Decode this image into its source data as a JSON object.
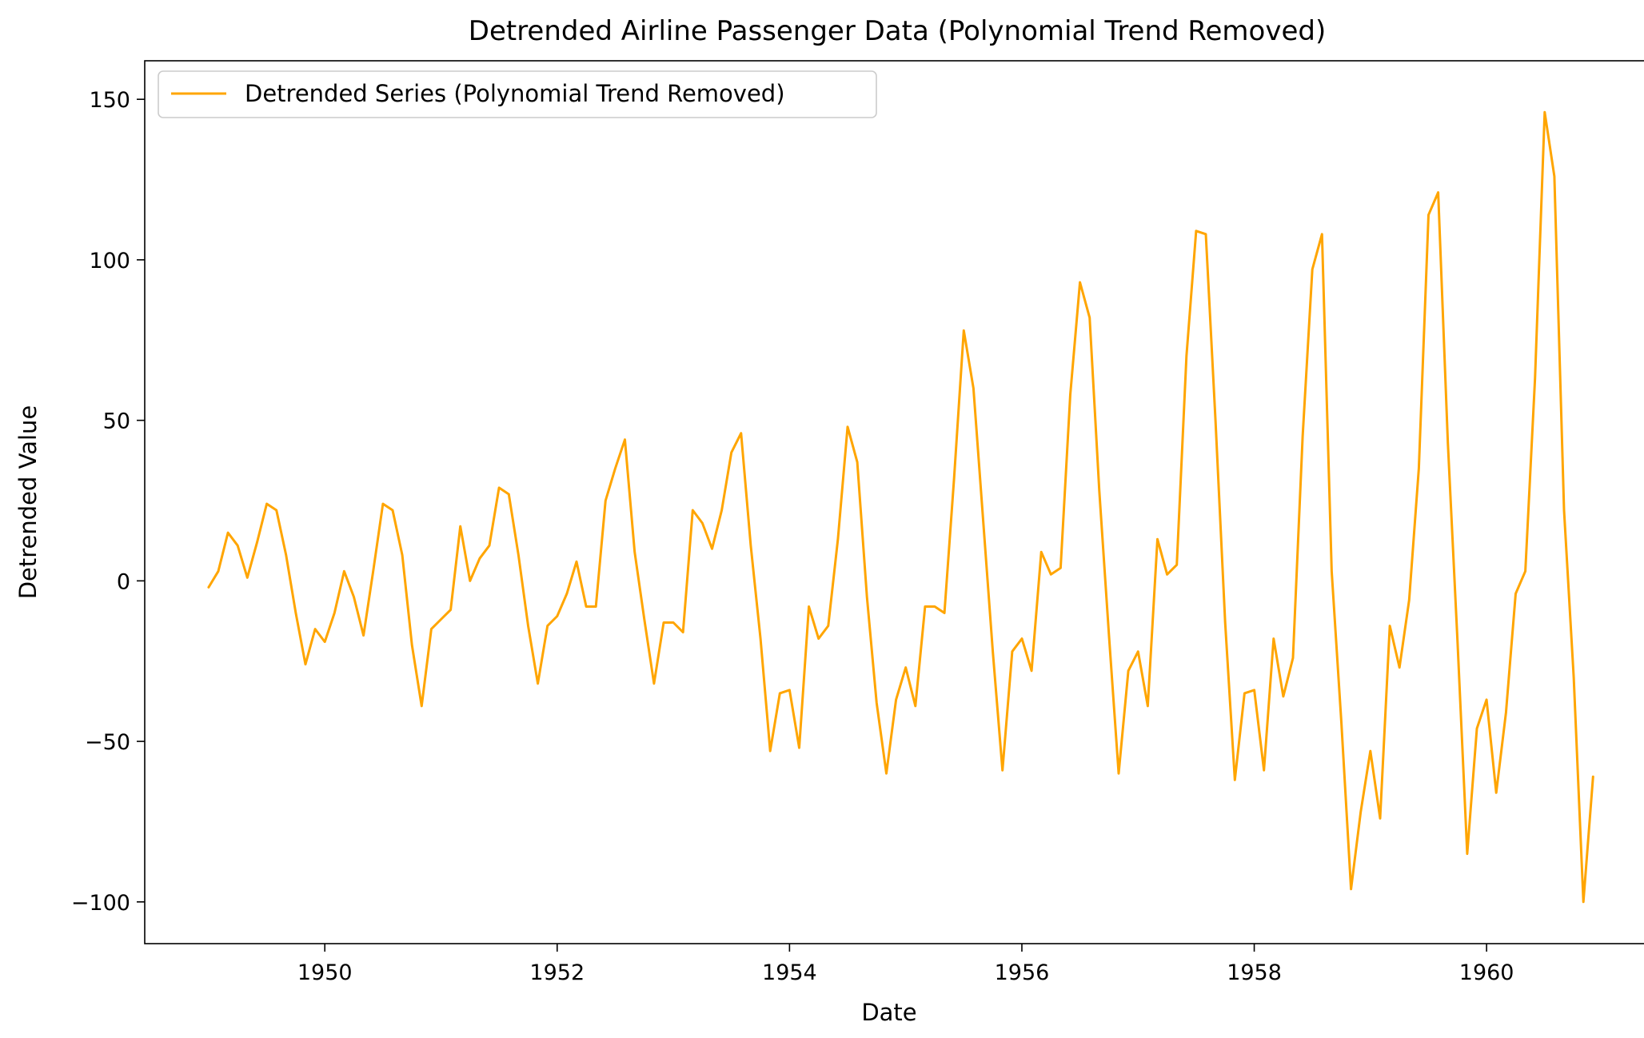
{
  "chart_data": {
    "type": "line",
    "title": "Detrended Airline Passenger Data (Polynomial Trend Removed)",
    "xlabel": "Date",
    "ylabel": "Detrended Value",
    "xlim": [
      1948.45,
      1961.41
    ],
    "ylim": [
      -113,
      162
    ],
    "xticks": [
      {
        "value": 1950,
        "label": "1950"
      },
      {
        "value": 1952,
        "label": "1952"
      },
      {
        "value": 1954,
        "label": "1954"
      },
      {
        "value": 1956,
        "label": "1956"
      },
      {
        "value": 1958,
        "label": "1958"
      },
      {
        "value": 1960,
        "label": "1960"
      }
    ],
    "yticks": [
      {
        "value": -100,
        "label": "−100"
      },
      {
        "value": -50,
        "label": "−50"
      },
      {
        "value": 0,
        "label": "0"
      },
      {
        "value": 50,
        "label": "50"
      },
      {
        "value": 100,
        "label": "100"
      },
      {
        "value": 150,
        "label": "150"
      }
    ],
    "grid": false,
    "legend": {
      "position": "upper-left",
      "entries": [
        "Detrended Series (Polynomial Trend Removed)"
      ]
    },
    "series": [
      {
        "name": "Detrended Series (Polynomial Trend Removed)",
        "color": "#FFA500",
        "x_start": "1949-01",
        "frequency": "monthly",
        "values": [
          -2,
          3,
          15,
          11,
          1,
          12,
          24,
          22,
          8,
          -10,
          -26,
          -15,
          -19,
          -10,
          3,
          -5,
          -17,
          3,
          24,
          22,
          8,
          -20,
          -39,
          -15,
          -12,
          -9,
          17,
          0,
          7,
          11,
          29,
          27,
          8,
          -14,
          -32,
          -14,
          -11,
          -4,
          6,
          -8,
          -8,
          25,
          35,
          44,
          9,
          -12,
          -32,
          -13,
          -13,
          -16,
          22,
          18,
          10,
          22,
          40,
          46,
          11,
          -18,
          -53,
          -35,
          -34,
          -52,
          -8,
          -18,
          -14,
          13,
          48,
          37,
          -5,
          -38,
          -60,
          -37,
          -27,
          -39,
          -8,
          -8,
          -10,
          32,
          78,
          60,
          19,
          -22,
          -59,
          -22,
          -18,
          -28,
          9,
          2,
          4,
          58,
          93,
          82,
          28,
          -17,
          -60,
          -28,
          -22,
          -39,
          13,
          2,
          5,
          70,
          109,
          108,
          50,
          -13,
          -62,
          -35,
          -34,
          -59,
          -18,
          -36,
          -24,
          45,
          97,
          108,
          3,
          -44,
          -96,
          -72,
          -53,
          -74,
          -14,
          -27,
          -6,
          35,
          114,
          121,
          43,
          -19,
          -85,
          -46,
          -37,
          -66,
          -41,
          -4,
          3,
          63,
          146,
          126,
          22,
          -30,
          -100,
          -61
        ]
      }
    ]
  }
}
